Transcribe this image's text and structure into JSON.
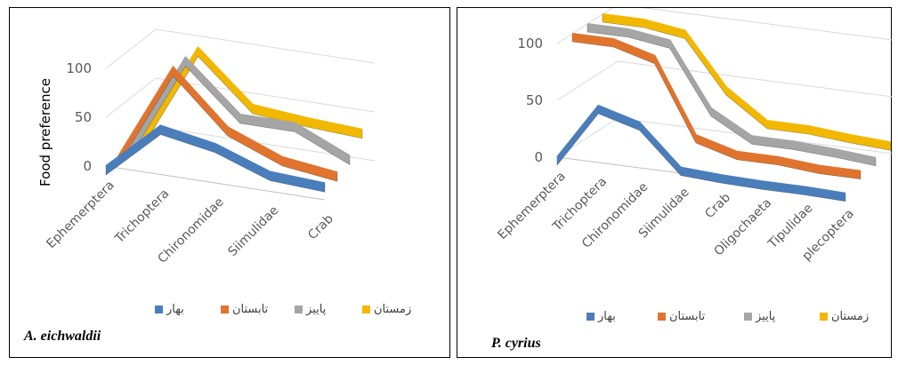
{
  "chart_data": [
    {
      "type": "line",
      "species": "A. eichwaldii",
      "ylabel": "Food preference",
      "categories": [
        "Ephemerptera",
        "Trichoptera",
        "Chironomidae",
        "Siimulidae",
        "Crab"
      ],
      "yticks": [
        "0",
        "50",
        "100"
      ],
      "ylim": [
        0,
        100
      ],
      "series": [
        {
          "name": "بهار",
          "values": [
            0,
            50,
            40,
            20,
            17
          ],
          "color": "#4a7ebb"
        },
        {
          "name": "تابستان",
          "values": [
            0,
            100,
            47,
            25,
            18
          ],
          "color": "#e0742e"
        },
        {
          "name": "پاییز",
          "values": [
            0,
            100,
            50,
            50,
            25
          ],
          "color": "#a5a5a5"
        },
        {
          "name": "زمستان",
          "values": [
            0,
            100,
            50,
            45,
            42
          ],
          "color": "#f2b800"
        }
      ],
      "legend_position": "bottom",
      "grid": true
    },
    {
      "type": "line",
      "species": "P. cyrius",
      "ylabel": "",
      "categories": [
        "Ephemerptera",
        "Trichoptera",
        "Chironomidae",
        "Siimulidae",
        "Crab",
        "Oligochaeta",
        "Tipulidae",
        "plecoptera"
      ],
      "yticks": [
        "0",
        "50",
        "100"
      ],
      "ylim": [
        0,
        100
      ],
      "series": [
        {
          "name": "بهار",
          "values": [
            0,
            50,
            40,
            5,
            3,
            2,
            2,
            1
          ],
          "color": "#4a7ebb"
        },
        {
          "name": "تابستان",
          "values": [
            100,
            100,
            90,
            25,
            15,
            15,
            12,
            12
          ],
          "color": "#e0742e"
        },
        {
          "name": "پاییز",
          "values": [
            100,
            100,
            95,
            40,
            20,
            20,
            18,
            15
          ],
          "color": "#a5a5a5"
        },
        {
          "name": "زمستان",
          "values": [
            100,
            100,
            95,
            50,
            25,
            25,
            22,
            20
          ],
          "color": "#f2b800"
        }
      ],
      "legend_position": "bottom",
      "grid": true
    }
  ]
}
